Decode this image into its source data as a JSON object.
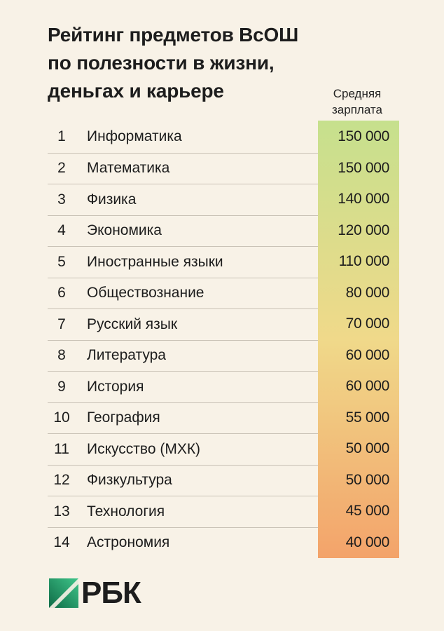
{
  "title_lines": [
    "Рейтинг предметов ВсОШ",
    "по полезности в жизни,",
    "деньгах и карьере"
  ],
  "column_header_lines": [
    "Средняя",
    "зарплата"
  ],
  "logo_text": "РБК",
  "colors": {
    "background": "#f8f2e7",
    "salary_high": "#c6e08d",
    "salary_mid": "#f0d98a",
    "salary_low": "#f3a36a"
  },
  "chart_data": {
    "type": "table",
    "columns": [
      "",
      "",
      "Средняя зарплата"
    ],
    "rows": [
      {
        "rank": "1",
        "subject": "Информатика",
        "salary_label": "150 000",
        "salary": 150000
      },
      {
        "rank": "2",
        "subject": "Математика",
        "salary_label": "150 000",
        "salary": 150000
      },
      {
        "rank": "3",
        "subject": "Физика",
        "salary_label": "140 000",
        "salary": 140000
      },
      {
        "rank": "4",
        "subject": "Экономика",
        "salary_label": "120 000",
        "salary": 120000
      },
      {
        "rank": "5",
        "subject": "Иностранные языки",
        "salary_label": "110 000",
        "salary": 110000
      },
      {
        "rank": "6",
        "subject": "Обществознание",
        "salary_label": "80 000",
        "salary": 80000
      },
      {
        "rank": "7",
        "subject": "Русский язык",
        "salary_label": "70 000",
        "salary": 70000
      },
      {
        "rank": "8",
        "subject": "Литература",
        "salary_label": "60 000",
        "salary": 60000
      },
      {
        "rank": "9",
        "subject": "История",
        "salary_label": "60 000",
        "salary": 60000
      },
      {
        "rank": "10",
        "subject": "География",
        "salary_label": "55 000",
        "salary": 55000
      },
      {
        "rank": "11",
        "subject": "Искусство (МХК)",
        "salary_label": "50 000",
        "salary": 50000
      },
      {
        "rank": "12",
        "subject": "Физкультура",
        "salary_label": "50 000",
        "salary": 50000
      },
      {
        "rank": "13",
        "subject": "Технология",
        "salary_label": "45 000",
        "salary": 45000
      },
      {
        "rank": "14",
        "subject": "Астрономия",
        "salary_label": "40 000",
        "salary": 40000
      }
    ]
  }
}
